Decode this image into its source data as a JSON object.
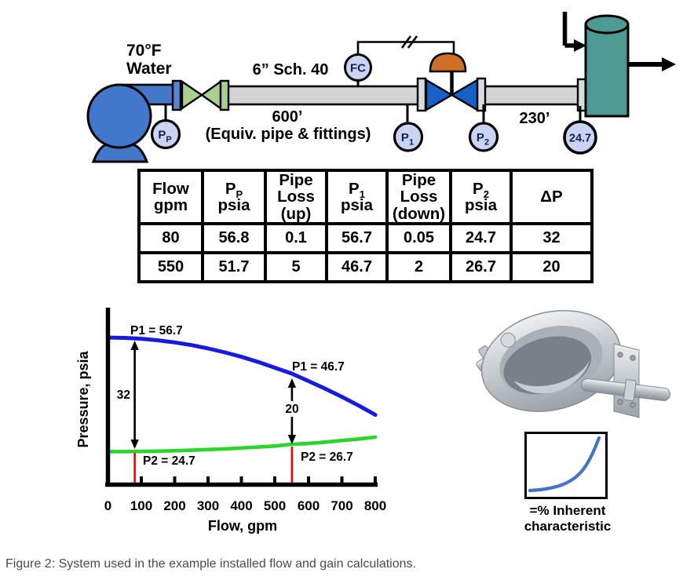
{
  "figure": {
    "caption": "Figure 2: System used in the example installed flow and gain calculations."
  },
  "diagram": {
    "temp_label": "70°F",
    "fluid_label": "Water",
    "pipe_spec": "6” Sch. 40",
    "upstream_length": "600’",
    "upstream_note": "(Equiv. pipe & fittings)",
    "downstream_length": "230’",
    "gauges": {
      "pump": {
        "main": "P",
        "sub": "P"
      },
      "controller": "FC",
      "p1": {
        "main": "P",
        "sub": "1"
      },
      "p2": {
        "main": "P",
        "sub": "2"
      },
      "tank_pressure": "24.7"
    }
  },
  "table": {
    "headers": [
      {
        "l1": "Flow",
        "l2": "gpm"
      },
      {
        "m": "P",
        "s": "P",
        "l2": "psia"
      },
      {
        "l1": "Pipe",
        "l2": "Loss",
        "l3": "(up)"
      },
      {
        "m": "P",
        "s": "1",
        "l2": "psia"
      },
      {
        "l1": "Pipe",
        "l2": "Loss",
        "l3": "(down)"
      },
      {
        "m": "P",
        "s": "2",
        "l2": "psia"
      },
      {
        "l1": "ΔP"
      }
    ],
    "rows": [
      [
        "80",
        "56.8",
        "0.1",
        "56.7",
        "0.05",
        "24.7",
        "32"
      ],
      [
        "550",
        "51.7",
        "5",
        "46.7",
        "2",
        "26.7",
        "20"
      ]
    ]
  },
  "chart_data": {
    "type": "line",
    "title": "",
    "xlabel": "Flow, gpm",
    "ylabel": "Pressure, psia",
    "xlim": [
      0,
      800
    ],
    "xticks": [
      "0",
      "100",
      "200",
      "300",
      "400",
      "500",
      "600",
      "700",
      "800"
    ],
    "grid": false,
    "legend": false,
    "series": [
      {
        "name": "P1",
        "color": "#1a1ade",
        "points": [
          [
            0,
            56.9
          ],
          [
            50,
            56.81
          ],
          [
            100,
            56.56
          ],
          [
            150,
            56.13
          ],
          [
            200,
            55.53
          ],
          [
            250,
            54.76
          ],
          [
            300,
            53.82
          ],
          [
            350,
            52.71
          ],
          [
            400,
            51.43
          ],
          [
            450,
            49.97
          ],
          [
            500,
            48.34
          ],
          [
            550,
            46.7
          ],
          [
            600,
            44.58
          ],
          [
            650,
            42.44
          ],
          [
            700,
            40.13
          ],
          [
            750,
            37.65
          ],
          [
            800,
            35.0
          ]
        ]
      },
      {
        "name": "P2",
        "color": "#2bd52b",
        "points": [
          [
            0,
            24.6
          ],
          [
            50,
            24.62
          ],
          [
            100,
            24.66
          ],
          [
            150,
            24.74
          ],
          [
            200,
            24.86
          ],
          [
            250,
            25.0
          ],
          [
            300,
            25.18
          ],
          [
            350,
            25.38
          ],
          [
            400,
            25.63
          ],
          [
            450,
            25.9
          ],
          [
            500,
            26.2
          ],
          [
            550,
            26.7
          ],
          [
            600,
            26.91
          ],
          [
            650,
            27.31
          ],
          [
            700,
            27.74
          ],
          [
            750,
            28.2
          ],
          [
            800,
            28.7
          ]
        ]
      }
    ],
    "annotations": [
      {
        "text": "P1 = 56.7"
      },
      {
        "text": "32"
      },
      {
        "text": "P2 = 24.7"
      },
      {
        "text": "P1 = 46.7"
      },
      {
        "text": "20"
      },
      {
        "text": "P2 = 26.7"
      }
    ],
    "operating_points": [
      {
        "flow": 80,
        "p1": 56.7,
        "p2": 24.7,
        "dp": 32
      },
      {
        "flow": 550,
        "p1": 46.7,
        "p2": 26.7,
        "dp": 20
      }
    ]
  },
  "valve": {
    "char_line1": "=% Inherent",
    "char_line2": "characteristic"
  },
  "colors": {
    "pump_blue": "#4377c9",
    "hand_valve_green": "#a9d18e",
    "control_valve_blue": "#1660c8",
    "actuator_orange": "#ce6e29",
    "tank_teal": "#4e9a92",
    "gauge_fill": "#cbd3f5",
    "pipe_gray": "#d4d4d4",
    "table_red": "#f40000",
    "marker_red": "#f40000",
    "p1_curve": "#1a1ade",
    "p2_curve": "#2bd52b",
    "char_curve": "#4472c4"
  }
}
